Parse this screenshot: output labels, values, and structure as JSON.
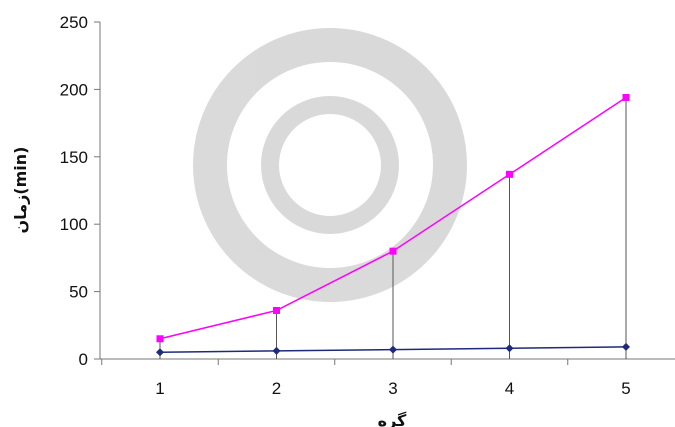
{
  "chart_data": {
    "type": "line",
    "title": "",
    "xlabel": "گره",
    "ylabel": "زمان(min)",
    "categories": [
      1,
      2,
      3,
      4,
      5
    ],
    "y_ticks": [
      0,
      50,
      100,
      150,
      200,
      250
    ],
    "ylim": [
      0,
      250
    ],
    "grid": false,
    "drop_lines": true,
    "series": [
      {
        "color": "#ff00ff",
        "marker": "square",
        "values": [
          15,
          36,
          80,
          137,
          194
        ]
      },
      {
        "color": "#1f2a7a",
        "marker": "diamond",
        "values": [
          5,
          6,
          7,
          8,
          9
        ]
      }
    ]
  }
}
